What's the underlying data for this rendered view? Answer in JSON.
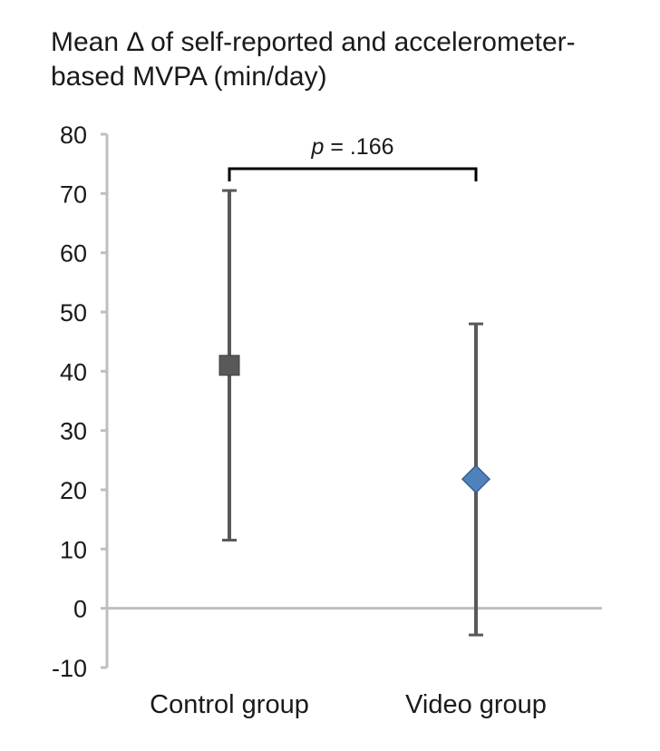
{
  "chart_data": {
    "type": "scatter",
    "title": "Mean Δ of self-reported and accelerometer-based MVPA (min/day)",
    "categories": [
      "Control group",
      "Video group"
    ],
    "series": [
      {
        "points": [
          {
            "category": "Control group",
            "mean": 41,
            "lower": 11.5,
            "upper": 70.5,
            "marker": "square",
            "color": "#595959"
          },
          {
            "category": "Video group",
            "mean": 21.8,
            "lower": -4.5,
            "upper": 48,
            "marker": "diamond",
            "color": "#4f81bd"
          }
        ]
      }
    ],
    "yticks": [
      80,
      70,
      60,
      50,
      40,
      30,
      20,
      10,
      0,
      -10
    ],
    "ylim": [
      -10,
      80
    ],
    "grid": false,
    "annotation": {
      "p_label": "p",
      "p_value": " = .166",
      "between": [
        "Control group",
        "Video group"
      ]
    }
  }
}
